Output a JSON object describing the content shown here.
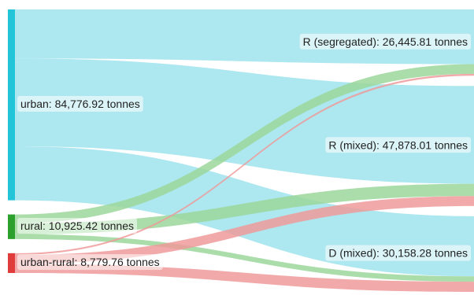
{
  "chart_data": {
    "type": "sankey",
    "title": "",
    "units": "tonnes",
    "sources": [
      {
        "id": "urban",
        "label": "urban: 84,776.92 tonnes",
        "value": 84776.92,
        "color": "#22c4d8",
        "flow_color": "#9fe3ec"
      },
      {
        "id": "rural",
        "label": "rural: 10,925.42 tonnes",
        "value": 10925.42,
        "color": "#2ca02c",
        "flow_color": "#9bd79a"
      },
      {
        "id": "urban_rural",
        "label": "urban-rural: 8,779.76 tonnes",
        "value": 8779.76,
        "color": "#e03c3c",
        "flow_color": "#ee9a9a"
      }
    ],
    "targets": [
      {
        "id": "r_seg",
        "label": "R (segregated): 26,445.81 tonnes",
        "value": 26445.81
      },
      {
        "id": "r_mixed",
        "label": "R (mixed): 47,878.01 tonnes",
        "value": 47878.01
      },
      {
        "id": "d_mixed",
        "label": "D (mixed): 30,158.28 tonnes",
        "value": 30158.28
      }
    ],
    "links": [
      {
        "source": "urban",
        "target": "r_seg",
        "value": 21800
      },
      {
        "source": "urban",
        "target": "r_mixed",
        "value": 39000
      },
      {
        "source": "urban",
        "target": "d_mixed",
        "value": 23976.92
      },
      {
        "source": "rural",
        "target": "r_seg",
        "value": 3900
      },
      {
        "source": "rural",
        "target": "r_mixed",
        "value": 4900
      },
      {
        "source": "rural",
        "target": "d_mixed",
        "value": 2125.42
      },
      {
        "source": "urban_rural",
        "target": "r_seg",
        "value": 745.81
      },
      {
        "source": "urban_rural",
        "target": "r_mixed",
        "value": 3978.01
      },
      {
        "source": "urban_rural",
        "target": "d_mixed",
        "value": 4055.94
      }
    ]
  }
}
